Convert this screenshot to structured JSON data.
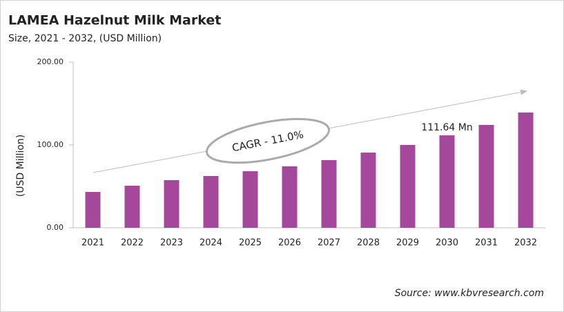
{
  "chart_data": {
    "type": "bar",
    "title": "LAMEA Hazelnut Milk Market",
    "subtitle": "Size, 2021 - 2032, (USD Million)",
    "y_label": "(USD Million)",
    "annotation": "CAGR - 11.0%",
    "source": "Source: www.kbvresearch.com",
    "categories": [
      "2021",
      "2022",
      "2023",
      "2024",
      "2025",
      "2026",
      "2027",
      "2028",
      "2029",
      "2030",
      "2031",
      "2032"
    ],
    "values": [
      43.3,
      50.8,
      57.5,
      62.5,
      68.3,
      74.2,
      81.7,
      90.8,
      100,
      111.64,
      124.2,
      139.2
    ],
    "value_labels": [
      null,
      null,
      null,
      null,
      null,
      null,
      null,
      null,
      null,
      "111.64 Mn",
      null,
      null
    ],
    "color": "#a5479b",
    "ylim": [
      0,
      200
    ],
    "yticks": [
      {
        "value": 0,
        "label": "0.00"
      },
      {
        "value": 100,
        "label": "100.00"
      },
      {
        "value": 200,
        "label": "200.00"
      }
    ],
    "grid": false
  }
}
